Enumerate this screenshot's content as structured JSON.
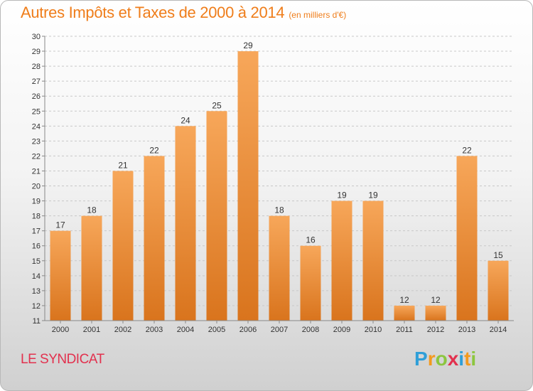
{
  "title": "Autres Impôts et Taxes de 2000 à 2014",
  "unit": "(en milliers d'€)",
  "commune": "LE SYNDICAT",
  "logo": {
    "letters": [
      "P",
      "r",
      "o",
      "x",
      "i",
      "t",
      "i"
    ],
    "colors": [
      "#2f9fd8",
      "#f39a1e",
      "#8cc63f",
      "#e2314e",
      "#2f9fd8",
      "#f39a1e",
      "#8cc63f"
    ]
  },
  "colors": {
    "bar_top": "#f7a75a",
    "bar_bottom": "#d9741d",
    "title": "#ef7d1a",
    "commune": "#e2314e"
  },
  "chart_data": {
    "type": "bar",
    "categories": [
      "2000",
      "2001",
      "2002",
      "2003",
      "2004",
      "2005",
      "2006",
      "2007",
      "2008",
      "2009",
      "2010",
      "2011",
      "2012",
      "2013",
      "2014"
    ],
    "values": [
      17,
      18,
      21,
      22,
      24,
      25,
      29,
      18,
      16,
      19,
      19,
      12,
      12,
      22,
      15
    ],
    "ylim": [
      11,
      30
    ],
    "yticks": [
      11,
      12,
      13,
      14,
      15,
      16,
      17,
      18,
      19,
      20,
      21,
      22,
      23,
      24,
      25,
      26,
      27,
      28,
      29,
      30
    ],
    "grid": true,
    "data_labels": true
  }
}
